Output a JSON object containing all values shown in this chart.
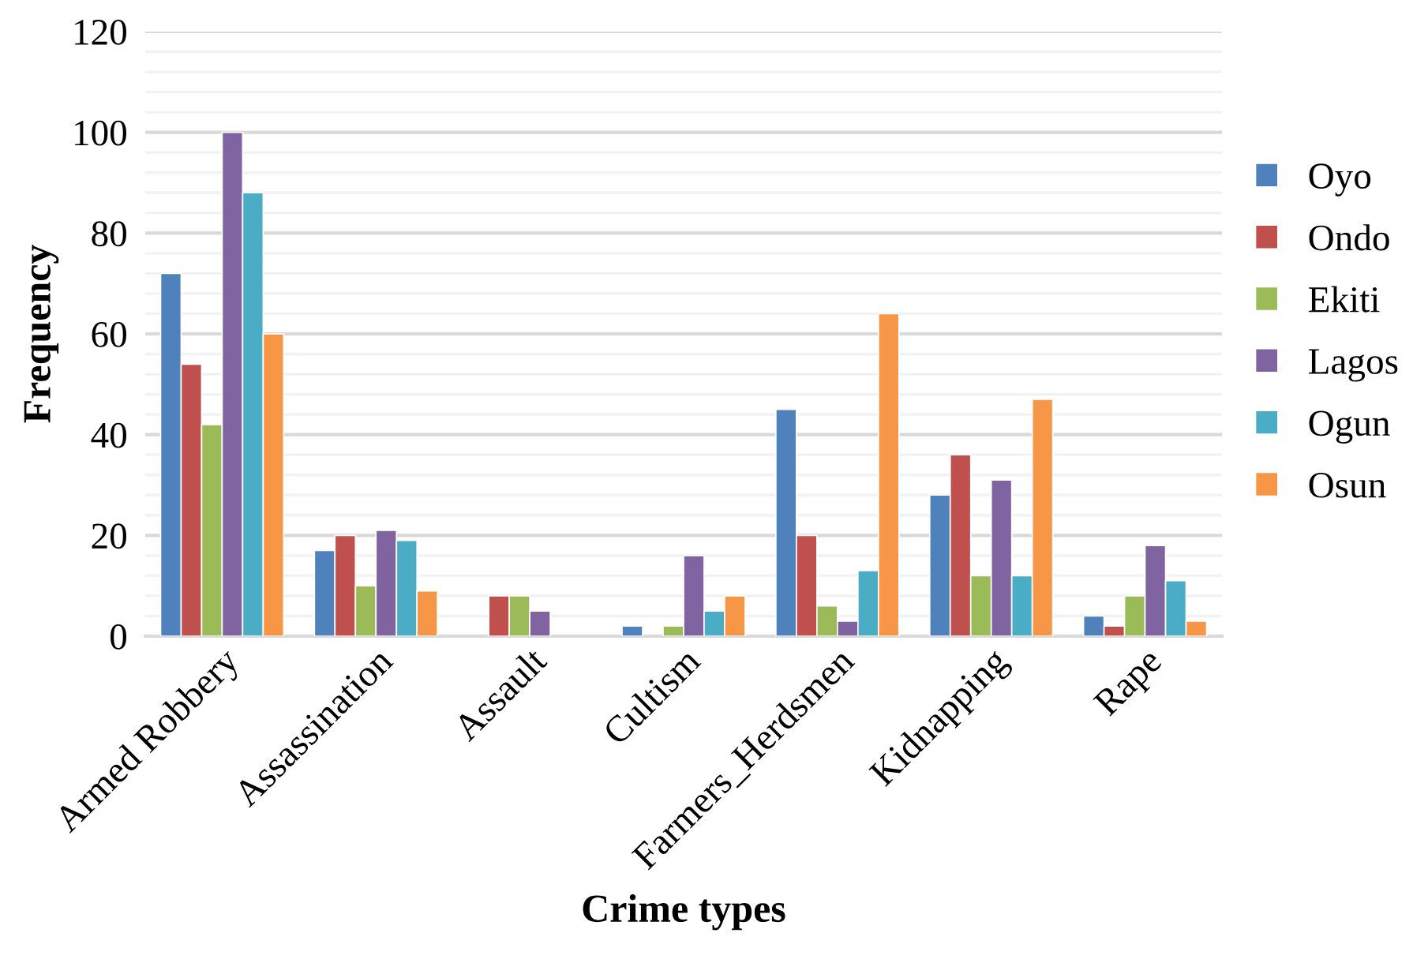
{
  "chart_data": {
    "type": "bar",
    "xlabel": "Crime types",
    "ylabel": "Frequency",
    "categories": [
      "Armed Robbery",
      "Assassination",
      "Assault",
      "Cultism",
      "Farmers_Herdsmen",
      "Kidnapping",
      "Rape"
    ],
    "series": [
      {
        "name": "Oyo",
        "color": "#4f81bd",
        "values": [
          72,
          17,
          null,
          2,
          45,
          28,
          4
        ]
      },
      {
        "name": "Ondo",
        "color": "#c0504d",
        "values": [
          54,
          20,
          8,
          null,
          20,
          36,
          2
        ]
      },
      {
        "name": "Ekiti",
        "color": "#9bbb59",
        "values": [
          42,
          10,
          8,
          2,
          6,
          12,
          8
        ]
      },
      {
        "name": "Lagos",
        "color": "#8064a2",
        "values": [
          100,
          21,
          5,
          16,
          3,
          31,
          18
        ]
      },
      {
        "name": "Ogun",
        "color": "#4bacc6",
        "values": [
          88,
          19,
          null,
          5,
          13,
          12,
          11
        ]
      },
      {
        "name": "Osun",
        "color": "#f79646",
        "values": [
          60,
          9,
          null,
          8,
          64,
          47,
          3
        ]
      }
    ],
    "ylim": [
      0,
      120
    ],
    "yticks": [
      0,
      {
        "value": 4,
        "label": null
      },
      {
        "value": 8,
        "label": null
      },
      {
        "value": 12,
        "label": null
      },
      {
        "value": 16,
        "label": null
      },
      20,
      {
        "value": 24,
        "label": null
      },
      {
        "value": 28,
        "label": null
      },
      {
        "value": 32,
        "label": null
      },
      {
        "value": 36,
        "label": null
      },
      40,
      {
        "value": 44,
        "label": null
      },
      {
        "value": 48,
        "label": null
      },
      {
        "value": 52,
        "label": null
      },
      {
        "value": 56,
        "label": null
      },
      60,
      {
        "value": 64,
        "label": null
      },
      {
        "value": 68,
        "label": null
      },
      {
        "value": 72,
        "label": null
      },
      {
        "value": 76,
        "label": null
      },
      80,
      {
        "value": 84,
        "label": null
      },
      {
        "value": 88,
        "label": null
      },
      {
        "value": 92,
        "label": null
      },
      {
        "value": 96,
        "label": null
      },
      100,
      {
        "value": 104,
        "label": null
      },
      {
        "value": 108,
        "label": null
      },
      {
        "value": 112,
        "label": null
      },
      {
        "value": 116,
        "label": null
      },
      120
    ],
    "grid": "y",
    "legend": "right"
  }
}
